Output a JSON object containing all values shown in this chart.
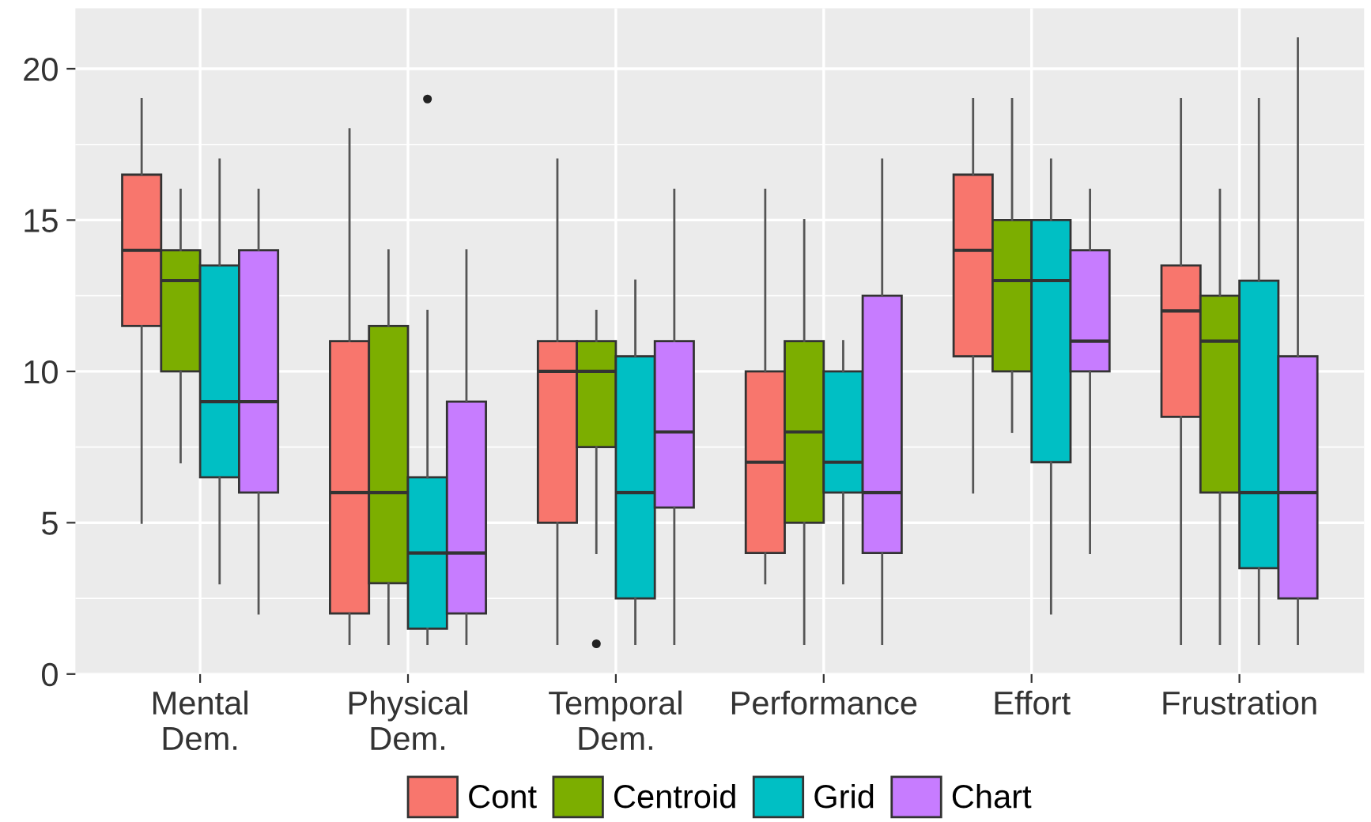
{
  "chart_data": {
    "type": "box",
    "categories": [
      "Mental\nDem.",
      "Physical\nDem.",
      "Temporal\nDem.",
      "Performance",
      "Effort",
      "Frustration"
    ],
    "ylim": [
      0,
      22
    ],
    "yticks": [
      0,
      5,
      10,
      15,
      20
    ],
    "grid": true,
    "legend": "bottom",
    "series": [
      {
        "name": "Cont",
        "color": "#f8766d",
        "boxes": [
          {
            "low": 5,
            "q1": 11.5,
            "median": 14,
            "q3": 16.5,
            "high": 19
          },
          {
            "low": 1,
            "q1": 2,
            "median": 6,
            "q3": 11,
            "high": 18
          },
          {
            "low": 1,
            "q1": 5,
            "median": 10,
            "q3": 11,
            "high": 17
          },
          {
            "low": 3,
            "q1": 4,
            "median": 7,
            "q3": 10,
            "high": 16
          },
          {
            "low": 6,
            "q1": 10.5,
            "median": 14,
            "q3": 16.5,
            "high": 19
          },
          {
            "low": 1,
            "q1": 8.5,
            "median": 12,
            "q3": 13.5,
            "high": 19
          }
        ]
      },
      {
        "name": "Centroid",
        "color": "#7cae00",
        "boxes": [
          {
            "low": 7,
            "q1": 10,
            "median": 13,
            "q3": 14,
            "high": 16
          },
          {
            "low": 1,
            "q1": 3,
            "median": 6,
            "q3": 11.5,
            "high": 14
          },
          {
            "low": 4,
            "q1": 7.5,
            "median": 10,
            "q3": 11,
            "high": 12,
            "outliers": [
              1
            ]
          },
          {
            "low": 1,
            "q1": 5,
            "median": 8,
            "q3": 11,
            "high": 15
          },
          {
            "low": 8,
            "q1": 10,
            "median": 13,
            "q3": 15,
            "high": 19
          },
          {
            "low": 1,
            "q1": 6,
            "median": 11,
            "q3": 12.5,
            "high": 16
          }
        ]
      },
      {
        "name": "Grid",
        "color": "#00bfc4",
        "boxes": [
          {
            "low": 3,
            "q1": 6.5,
            "median": 9,
            "q3": 13.5,
            "high": 17
          },
          {
            "low": 1,
            "q1": 1.5,
            "median": 4,
            "q3": 6.5,
            "high": 12,
            "outliers": [
              19
            ]
          },
          {
            "low": 1,
            "q1": 2.5,
            "median": 6,
            "q3": 10.5,
            "high": 13
          },
          {
            "low": 3,
            "q1": 6,
            "median": 7,
            "q3": 10,
            "high": 11
          },
          {
            "low": 2,
            "q1": 7,
            "median": 13,
            "q3": 15,
            "high": 17
          },
          {
            "low": 1,
            "q1": 3.5,
            "median": 6,
            "q3": 13,
            "high": 19
          }
        ]
      },
      {
        "name": "Chart",
        "color": "#c77cff",
        "boxes": [
          {
            "low": 2,
            "q1": 6,
            "median": 9,
            "q3": 14,
            "high": 16
          },
          {
            "low": 1,
            "q1": 2,
            "median": 4,
            "q3": 9,
            "high": 14
          },
          {
            "low": 1,
            "q1": 5.5,
            "median": 8,
            "q3": 11,
            "high": 16
          },
          {
            "low": 1,
            "q1": 4,
            "median": 6,
            "q3": 12.5,
            "high": 17
          },
          {
            "low": 4,
            "q1": 10,
            "median": 11,
            "q3": 14,
            "high": 16
          },
          {
            "low": 1,
            "q1": 2.5,
            "median": 6,
            "q3": 10.5,
            "high": 21
          }
        ]
      }
    ]
  }
}
